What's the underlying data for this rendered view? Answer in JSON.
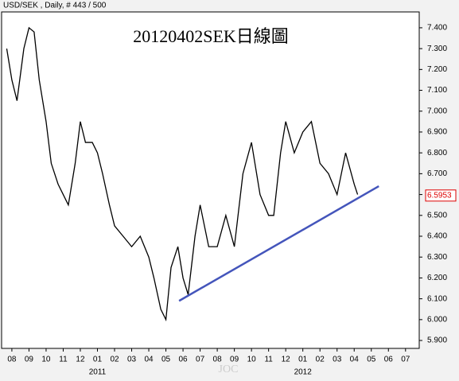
{
  "chart_data": {
    "type": "line",
    "header": "USD/SEK , Daily, # 443 / 500",
    "title": "20120402SEK日線圖",
    "watermark": "JOC",
    "series": [
      {
        "name": "USD/SEK",
        "color": "#000000",
        "x": [
          -0.3,
          0,
          0.3,
          0.7,
          1,
          1.3,
          1.6,
          2,
          2.3,
          2.7,
          3,
          3.3,
          3.7,
          4,
          4.3,
          4.7,
          5,
          5.3,
          5.7,
          6,
          6.5,
          7,
          7.5,
          8,
          8.3,
          8.7,
          9,
          9.3,
          9.7,
          10,
          10.3,
          10.7,
          11,
          11.5,
          12,
          12.5,
          13,
          13.5,
          14,
          14.5,
          15,
          15.3,
          15.7,
          16,
          16.5,
          17,
          17.5,
          18,
          18.5,
          19,
          19.5,
          20,
          20.2
        ],
        "values": [
          7.3,
          7.15,
          7.05,
          7.3,
          7.4,
          7.38,
          7.15,
          6.95,
          6.75,
          6.65,
          6.6,
          6.55,
          6.75,
          6.95,
          6.85,
          6.85,
          6.8,
          6.7,
          6.55,
          6.45,
          6.4,
          6.35,
          6.4,
          6.3,
          6.2,
          6.05,
          6.0,
          6.25,
          6.35,
          6.2,
          6.12,
          6.4,
          6.55,
          6.35,
          6.35,
          6.5,
          6.35,
          6.7,
          6.85,
          6.6,
          6.5,
          6.5,
          6.8,
          6.95,
          6.8,
          6.9,
          6.95,
          6.75,
          6.7,
          6.6,
          6.8,
          6.65,
          6.6
        ]
      }
    ],
    "trendline": {
      "x": [
        9.77,
        21.44
      ],
      "values": [
        6.09,
        6.64
      ],
      "color": "#4455bb"
    },
    "last_price": 6.5953,
    "xlim": [
      -0.6,
      23.8
    ],
    "xticks": [
      {
        "value": 0,
        "label": "08"
      },
      {
        "value": 1,
        "label": "09"
      },
      {
        "value": 2,
        "label": "10"
      },
      {
        "value": 3,
        "label": "11"
      },
      {
        "value": 4,
        "label": "12"
      },
      {
        "value": 5,
        "label": "01"
      },
      {
        "value": 6,
        "label": "02"
      },
      {
        "value": 7,
        "label": "03"
      },
      {
        "value": 8,
        "label": "04"
      },
      {
        "value": 9,
        "label": "05"
      },
      {
        "value": 10,
        "label": "06"
      },
      {
        "value": 11,
        "label": "07"
      },
      {
        "value": 12,
        "label": "08"
      },
      {
        "value": 13,
        "label": "09"
      },
      {
        "value": 14,
        "label": "10"
      },
      {
        "value": 15,
        "label": "11"
      },
      {
        "value": 16,
        "label": "12"
      },
      {
        "value": 17,
        "label": "01"
      },
      {
        "value": 18,
        "label": "02"
      },
      {
        "value": 19,
        "label": "03"
      },
      {
        "value": 20,
        "label": "04"
      },
      {
        "value": 21,
        "label": "05"
      },
      {
        "value": 22,
        "label": "06"
      },
      {
        "value": 23,
        "label": "07"
      }
    ],
    "year_labels": [
      {
        "value": 5,
        "label": "2011"
      },
      {
        "value": 17,
        "label": "2012"
      }
    ],
    "ylim": [
      5.862,
      7.476
    ],
    "yticks": [
      {
        "value": 7.4,
        "label": "7.400"
      },
      {
        "value": 7.3,
        "label": "7.300"
      },
      {
        "value": 7.2,
        "label": "7.200"
      },
      {
        "value": 7.1,
        "label": "7.100"
      },
      {
        "value": 7.0,
        "label": "7.000"
      },
      {
        "value": 6.9,
        "label": "6.900"
      },
      {
        "value": 6.8,
        "label": "6.800"
      },
      {
        "value": 6.7,
        "label": "6.700"
      },
      {
        "value": 6.6,
        "label": "6.600"
      },
      {
        "value": 6.5,
        "label": "6.500"
      },
      {
        "value": 6.4,
        "label": "6.400"
      },
      {
        "value": 6.3,
        "label": "6.300"
      },
      {
        "value": 6.2,
        "label": "6.200"
      },
      {
        "value": 6.1,
        "label": "6.100"
      },
      {
        "value": 6.0,
        "label": "6.000"
      },
      {
        "value": 5.9,
        "label": "5.900"
      }
    ]
  }
}
